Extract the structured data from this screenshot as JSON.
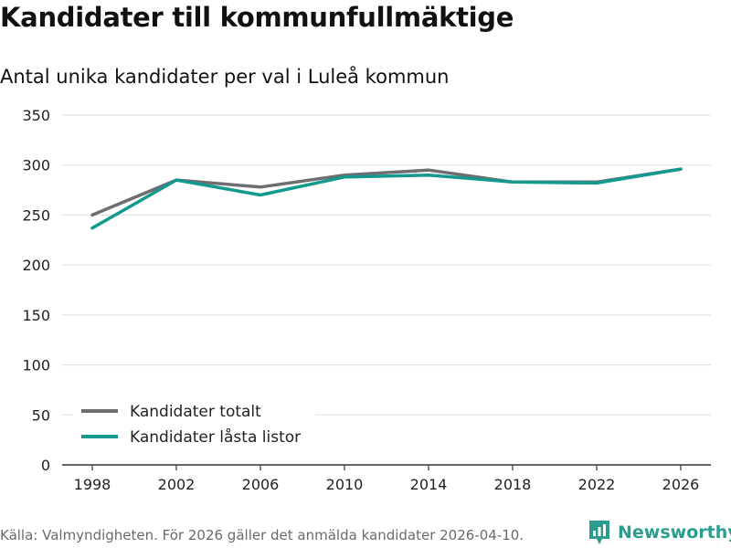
{
  "title": "Kandidater till kommunfullmäktige",
  "subtitle": "Antal unika kandidater per val i Luleå kommun",
  "source": "Källa: Valmyndigheten. För 2026 gäller det anmälda kandidater 2026-04-10.",
  "brand": "Newsworthy",
  "colors": {
    "total": "#6d6d72",
    "locked": "#14998e",
    "grid": "#dddddd",
    "axis": "#333333",
    "brand": "#2a9d8f"
  },
  "chart_data": {
    "type": "line",
    "categories": [
      "1998",
      "2002",
      "2006",
      "2010",
      "2014",
      "2018",
      "2022",
      "2026"
    ],
    "series": [
      {
        "name": "Kandidater totalt",
        "values": [
          250,
          285,
          278,
          290,
          295,
          283,
          283,
          296
        ]
      },
      {
        "name": "Kandidater låsta listor",
        "values": [
          237,
          285,
          270,
          288,
          290,
          283,
          282,
          296
        ]
      }
    ],
    "yticks": [
      0,
      50,
      100,
      150,
      200,
      250,
      300,
      350
    ],
    "ylim": [
      0,
      350
    ],
    "legend_position": "bottom-left"
  }
}
